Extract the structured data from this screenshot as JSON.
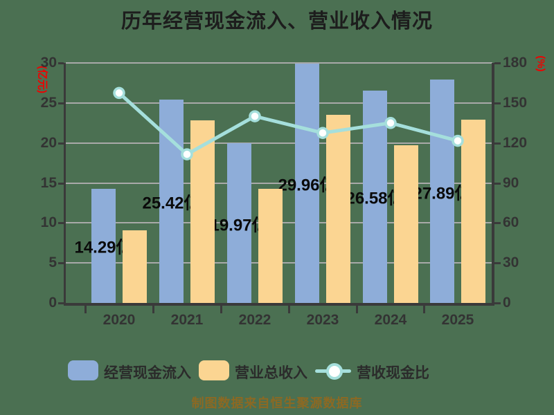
{
  "page": {
    "background_color": "#4B7052"
  },
  "chart_data": {
    "type": "bar",
    "title": "历年经营现金流入、营业收入情况",
    "categories": [
      "2020",
      "2021",
      "2022",
      "2023",
      "2024",
      "2025"
    ],
    "series": [
      {
        "name": "经营现金流入",
        "type": "bar",
        "axis": "left",
        "color": "#8EADD9",
        "values": [
          14.29,
          25.42,
          19.97,
          29.96,
          26.58,
          27.89
        ],
        "data_labels": [
          "14.29亿",
          "25.42亿",
          "19.97亿",
          "29.96亿",
          "26.58亿",
          "27.89亿"
        ]
      },
      {
        "name": "营业总收入",
        "type": "bar",
        "axis": "left",
        "color": "#FBD592",
        "values": [
          9.07,
          22.8,
          14.27,
          23.49,
          19.69,
          22.94
        ]
      },
      {
        "name": "营收现金比",
        "type": "line",
        "axis": "right",
        "color": "#A5DFDC",
        "marker": "hollow-circle",
        "values": [
          157.5,
          111.5,
          140.0,
          127.5,
          135.0,
          121.6
        ]
      }
    ],
    "left_axis": {
      "unit": "(亿元)",
      "unit_color": "#f10000",
      "min": 0,
      "max": 30,
      "ticks": [
        0,
        5,
        10,
        15,
        20,
        25,
        30
      ]
    },
    "right_axis": {
      "unit": "(%)",
      "unit_color": "#f10000",
      "min": 0,
      "max": 180,
      "ticks": [
        0,
        30,
        60,
        90,
        120,
        150,
        180
      ]
    },
    "grid": true,
    "legend_position": "bottom"
  },
  "legend": {
    "items": [
      {
        "label": "经营现金流入",
        "swatch": "bar",
        "color": "#8EADD9"
      },
      {
        "label": "营业总收入",
        "swatch": "bar",
        "color": "#FBD592"
      },
      {
        "label": "营收现金比",
        "swatch": "line-circle",
        "color": "#A5DFDC"
      }
    ]
  },
  "caption": "制图数据来自恒生聚源数据库"
}
